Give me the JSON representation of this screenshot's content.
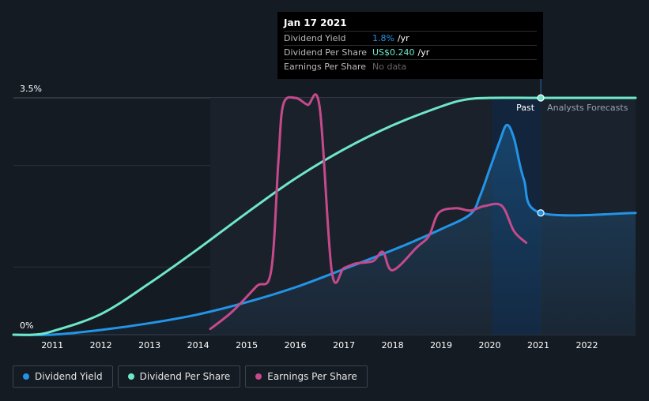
{
  "chart_data": {
    "type": "line",
    "x_axis": {
      "ticks": [
        "2011",
        "2012",
        "2013",
        "2014",
        "2015",
        "2016",
        "2017",
        "2018",
        "2019",
        "2020",
        "2021",
        "2022"
      ],
      "range": [
        2010.2,
        2023.0
      ]
    },
    "y_axis": {
      "labels": [
        "3.5%",
        "0%"
      ],
      "range": [
        0,
        3.5
      ],
      "grid": true
    },
    "regions": {
      "past_label": "Past",
      "forecast_label": "Analysts Forecasts",
      "divider_x": 2021.05
    },
    "series": [
      {
        "name": "Dividend Yield",
        "key": "dividend_yield",
        "color": "#2394e6",
        "fill": true,
        "points": [
          [
            2010.2,
            0.0
          ],
          [
            2011.0,
            0.0
          ],
          [
            2012.0,
            0.07
          ],
          [
            2013.0,
            0.17
          ],
          [
            2014.0,
            0.3
          ],
          [
            2015.0,
            0.48
          ],
          [
            2016.0,
            0.7
          ],
          [
            2017.0,
            0.97
          ],
          [
            2018.0,
            1.25
          ],
          [
            2018.5,
            1.4
          ],
          [
            2019.0,
            1.56
          ],
          [
            2019.6,
            1.78
          ],
          [
            2019.8,
            2.05
          ],
          [
            2020.0,
            2.45
          ],
          [
            2020.2,
            2.85
          ],
          [
            2020.35,
            3.1
          ],
          [
            2020.5,
            2.9
          ],
          [
            2020.7,
            2.3
          ],
          [
            2021.05,
            1.8
          ],
          [
            2023.0,
            1.8
          ]
        ]
      },
      {
        "name": "Dividend Per Share",
        "key": "dividend_per_share",
        "color": "#6ee7c8",
        "fill": false,
        "points": [
          [
            2010.2,
            0.0
          ],
          [
            2010.6,
            0.0
          ],
          [
            2011.0,
            0.02
          ],
          [
            2012.0,
            0.12
          ],
          [
            2013.0,
            0.3
          ],
          [
            2014.0,
            0.5
          ],
          [
            2015.0,
            0.71
          ],
          [
            2016.0,
            0.91
          ],
          [
            2017.0,
            1.08
          ],
          [
            2018.0,
            1.22
          ],
          [
            2019.0,
            1.33
          ],
          [
            2019.5,
            1.37
          ],
          [
            2020.0,
            1.38
          ],
          [
            2021.05,
            1.38
          ],
          [
            2023.0,
            1.38
          ]
        ],
        "scale_max": 1.38
      },
      {
        "name": "Earnings Per Share",
        "key": "earnings_per_share",
        "color": "#c54a8b",
        "fill": false,
        "points": [
          [
            2014.25,
            0.05
          ],
          [
            2014.7,
            0.2
          ],
          [
            2015.2,
            0.42
          ],
          [
            2015.5,
            0.55
          ],
          [
            2015.65,
            1.5
          ],
          [
            2015.75,
            2.0
          ],
          [
            2016.0,
            2.06
          ],
          [
            2016.25,
            2.0
          ],
          [
            2016.5,
            1.98
          ],
          [
            2016.75,
            0.55
          ],
          [
            2017.0,
            0.58
          ],
          [
            2017.25,
            0.62
          ],
          [
            2017.6,
            0.64
          ],
          [
            2017.8,
            0.72
          ],
          [
            2018.0,
            0.56
          ],
          [
            2018.5,
            0.76
          ],
          [
            2018.75,
            0.86
          ],
          [
            2018.95,
            1.06
          ],
          [
            2019.3,
            1.1
          ],
          [
            2019.6,
            1.08
          ],
          [
            2019.9,
            1.12
          ],
          [
            2020.25,
            1.12
          ],
          [
            2020.5,
            0.9
          ],
          [
            2020.75,
            0.8
          ]
        ],
        "scale_max": 2.06
      }
    ],
    "highlight": {
      "x": 2021.05,
      "date": "Jan 17 2021",
      "rows": [
        {
          "label": "Dividend Yield",
          "value": "1.8%",
          "unit": "/yr",
          "color": "#2394e6"
        },
        {
          "label": "Dividend Per Share",
          "value": "US$0.240",
          "unit": "/yr",
          "color": "#6ee7c8"
        },
        {
          "label": "Earnings Per Share",
          "value": "No data",
          "unit": "",
          "color": "#666666"
        }
      ]
    }
  },
  "legend": [
    {
      "label": "Dividend Yield",
      "color": "#2394e6"
    },
    {
      "label": "Dividend Per Share",
      "color": "#6ee7c8"
    },
    {
      "label": "Earnings Per Share",
      "color": "#c54a8b"
    }
  ]
}
